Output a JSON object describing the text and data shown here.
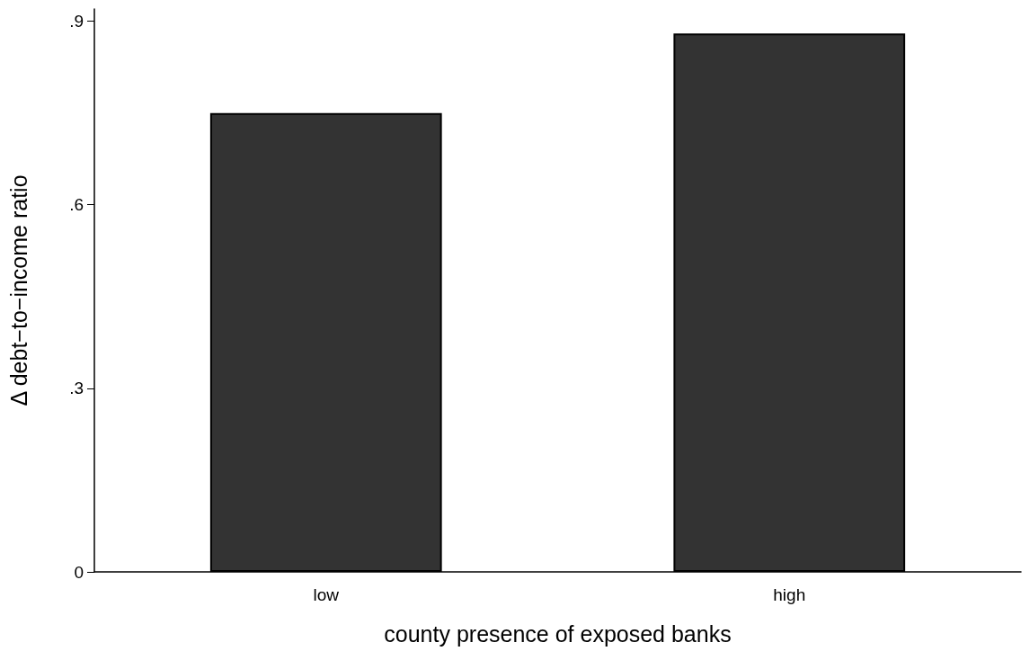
{
  "chart_data": {
    "type": "bar",
    "xlabel": "county presence of exposed banks",
    "ylabel": "Δ debt−to−income ratio",
    "categories": [
      "low",
      "high"
    ],
    "values": [
      0.75,
      0.88
    ],
    "color": "#333333",
    "ylim": [
      0,
      0.92
    ],
    "yticks": [
      0,
      {
        "value": 0.3,
        "label": ".3"
      },
      {
        "value": 0.6,
        "label": ".6"
      },
      {
        "value": 0.9,
        "label": ".9"
      }
    ],
    "grid": false
  }
}
